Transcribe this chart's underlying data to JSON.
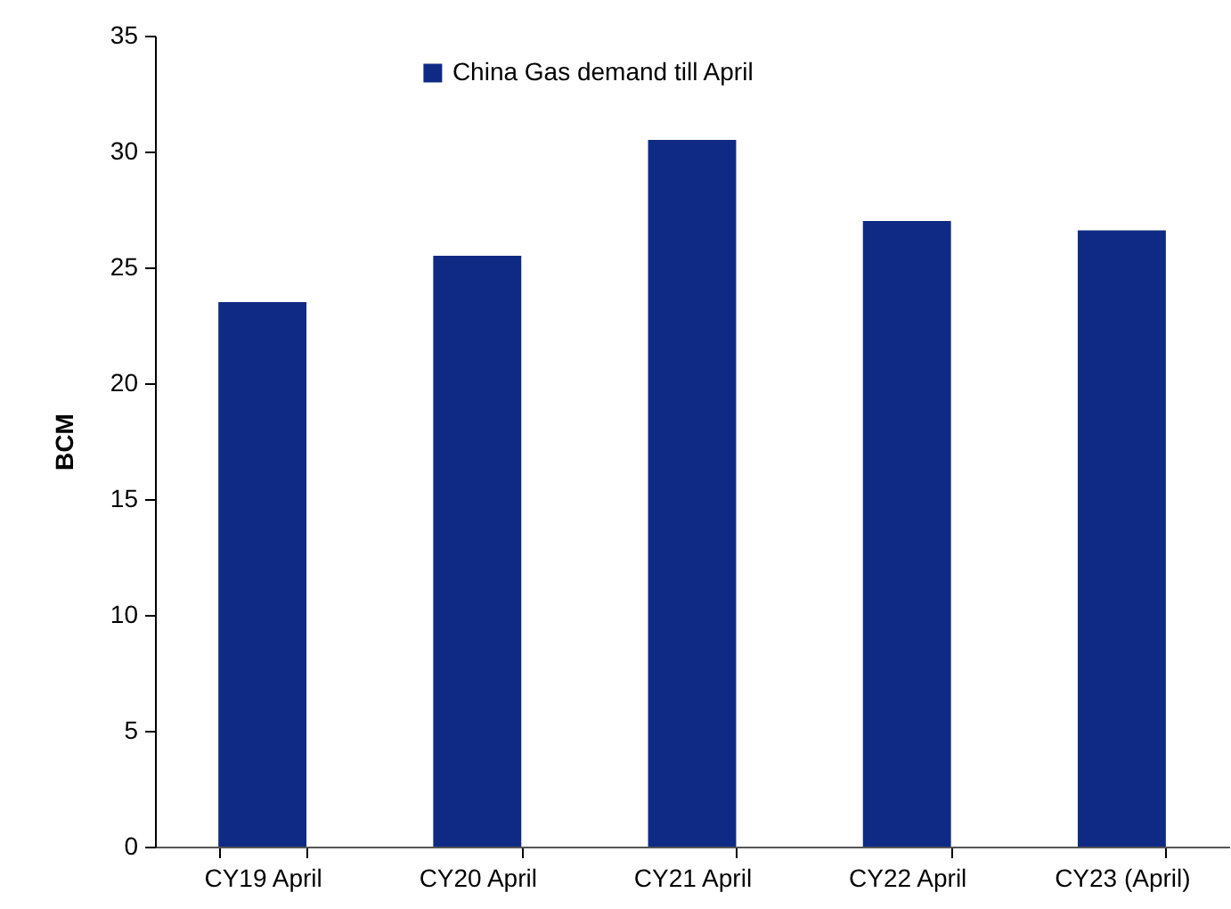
{
  "chart_data": {
    "type": "bar",
    "ylabel": "BCM",
    "categories": [
      "CY19 April",
      "CY20 April",
      "CY21 April",
      "CY22 April",
      "CY23 (April)"
    ],
    "series": [
      {
        "name": "China Gas demand till April",
        "color": "#0f2a85",
        "values": [
          23.5,
          25.5,
          30.5,
          27.0,
          26.6
        ]
      }
    ],
    "ylim": [
      0,
      35
    ],
    "yticks": [
      0,
      5,
      10,
      15,
      20,
      25,
      30,
      35
    ],
    "grid": false,
    "legend": "top"
  }
}
